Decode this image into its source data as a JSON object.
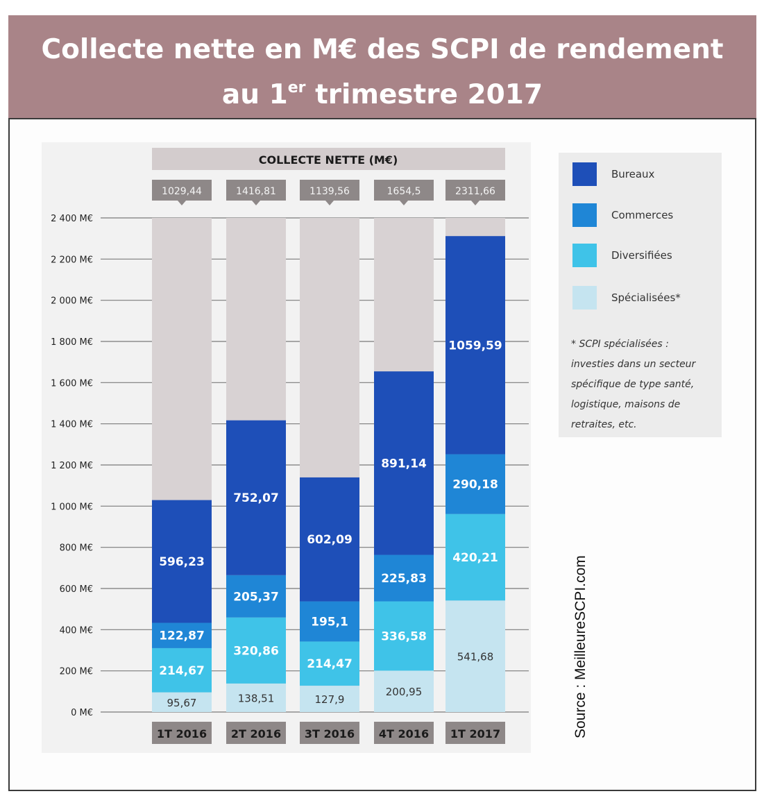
{
  "header": {
    "title_line1": "Collecte nette en M€ des SCPI de rendement",
    "title_line2_pre": "au 1",
    "title_line2_sup": "er",
    "title_line2_post": " trimestre 2017"
  },
  "legend": {
    "items": [
      {
        "label": "Bureaux",
        "color": "#1e4fb8"
      },
      {
        "label": "Commerces",
        "color": "#1f86d6"
      },
      {
        "label": "Diversifiées",
        "color": "#3fc3e8"
      },
      {
        "label": "Spécialisées*",
        "color": "#c5e4f0"
      }
    ],
    "note": "* SCPI spécialisées : investies dans un secteur spécifique de type santé, logistique, maisons de retraites, etc."
  },
  "source": "Source : MeilleureSCPI.com",
  "colors": {
    "banner": "#a98488",
    "bar_background": "#d8d2d3",
    "header_box": "#d3cccd",
    "category_box": "#8e8888",
    "bureaux": "#1e4fb8",
    "commerces": "#1f86d6",
    "diversifiees": "#3fc3e8",
    "specialisees": "#c5e4f0"
  },
  "chart_data": {
    "type": "bar",
    "stacked": true,
    "title": "COLLECTE NETTE (M€)",
    "categories": [
      "1T 2016",
      "2T 2016",
      "3T 2016",
      "4T 2016",
      "1T 2017"
    ],
    "totals": [
      "1029,44",
      "1416,81",
      "1139,56",
      "1654,5",
      "2311,66"
    ],
    "series": [
      {
        "name": "Spécialisées*",
        "values": [
          95.67,
          138.51,
          127.9,
          200.95,
          541.68
        ],
        "labels": [
          "95,67",
          "138,51",
          "127,9",
          "200,95",
          "541,68"
        ]
      },
      {
        "name": "Diversifiées",
        "values": [
          214.67,
          320.86,
          214.47,
          336.58,
          420.21
        ],
        "labels": [
          "214,67",
          "320,86",
          "214,47",
          "336,58",
          "420,21"
        ]
      },
      {
        "name": "Commerces",
        "values": [
          122.87,
          205.37,
          195.1,
          225.83,
          290.18
        ],
        "labels": [
          "122,87",
          "205,37",
          "195,1",
          "225,83",
          "290,18"
        ]
      },
      {
        "name": "Bureaux",
        "values": [
          596.23,
          752.07,
          602.09,
          891.14,
          1059.59
        ],
        "labels": [
          "596,23",
          "752,07",
          "602,09",
          "891,14",
          "1059,59"
        ]
      }
    ],
    "yticks": [
      "0 M€",
      "200 M€",
      "400 M€",
      "600 M€",
      "800 M€",
      "1 000 M€",
      "1 200 M€",
      "1 400 M€",
      "1 600 M€",
      "1 800 M€",
      "2 000 M€",
      "2 200 M€",
      "2 400 M€"
    ],
    "ylim": [
      0,
      2400
    ],
    "grid": true,
    "legend_position": "right"
  }
}
